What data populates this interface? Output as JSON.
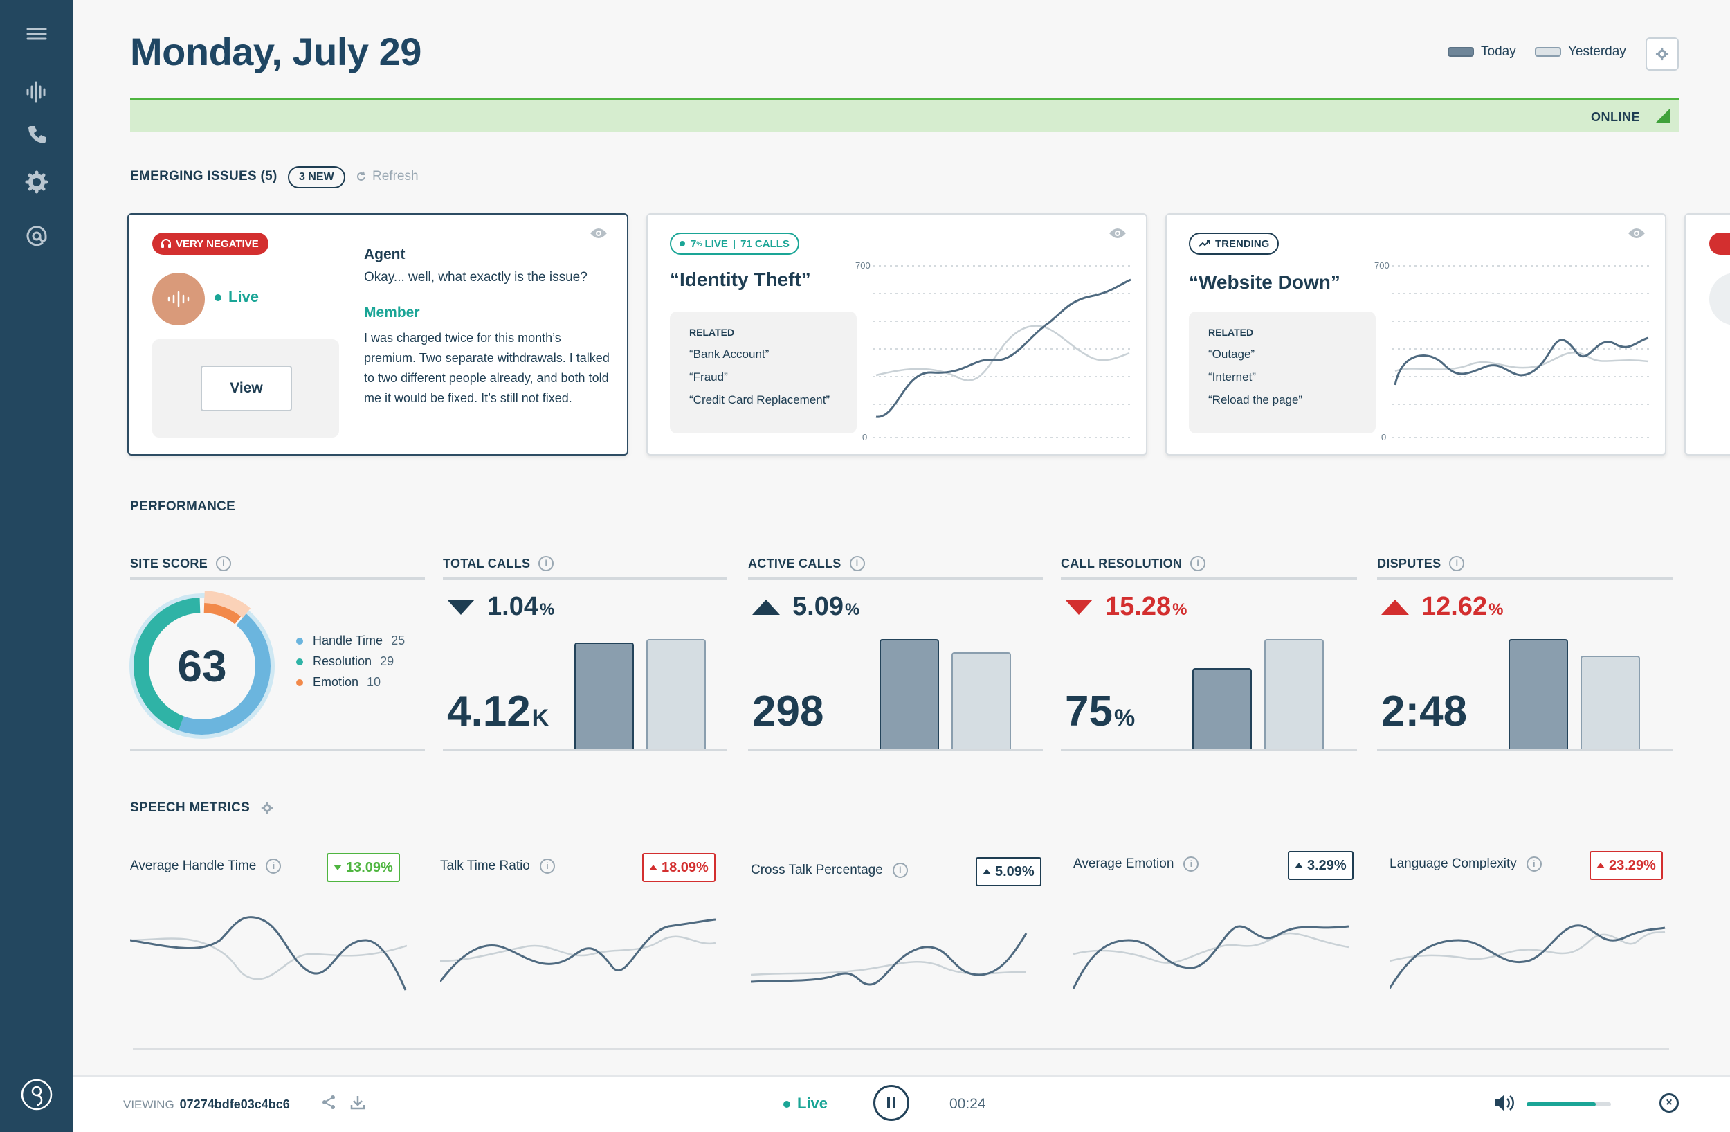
{
  "header": {
    "title": "Monday, July 29",
    "legend_today": "Today",
    "legend_yesterday": "Yesterday",
    "status": "ONLINE"
  },
  "colors": {
    "sidebar": "#23475f",
    "teal": "#1aa596",
    "negative_red": "#d32f2f",
    "positive_green": "#4fb540",
    "navy": "#1e3d52"
  },
  "sidebar": {
    "icons": [
      "menu-icon",
      "waveform-icon",
      "phone-icon",
      "gear-icon",
      "at-sign-icon",
      "logo-icon"
    ]
  },
  "emerging": {
    "label": "EMERGING ISSUES (5)",
    "new_badge": "3 NEW",
    "refresh": "Refresh",
    "card1": {
      "badge": "VERY NEGATIVE",
      "status": "Live",
      "view_button": "View",
      "agent_label": "Agent",
      "agent_text": "Okay... well, what exactly is the issue?",
      "member_label": "Member",
      "member_text": "I was charged twice for this month’s premium. Two separate withdrawals. I talked to two different people already, and both told me it would be fixed. It’s still not fixed."
    },
    "card2": {
      "pill_prefix": "7",
      "pill_sup": "%",
      "pill_live": "LIVE",
      "pill_calls": "71 CALLS",
      "title": "“Identity Theft”",
      "related_label": "RELATED",
      "related": [
        "“Bank Account”",
        "“Fraud”",
        "“Credit Card Replacement”"
      ],
      "y_max": "700",
      "y_min": "0"
    },
    "card3": {
      "pill": "TRENDING",
      "title": "“Website Down”",
      "related_label": "RELATED",
      "related": [
        "“Outage”",
        "“Internet”",
        "“Reload the page”"
      ],
      "y_max": "700",
      "y_min": "0"
    }
  },
  "performance": {
    "label": "PERFORMANCE",
    "site_score": {
      "label": "SITE SCORE",
      "value": "63",
      "legend": [
        {
          "name": "Handle Time",
          "value": "25",
          "color": "#6bb5de"
        },
        {
          "name": "Resolution",
          "value": "29",
          "color": "#2fb3a6"
        },
        {
          "name": "Emotion",
          "value": "10",
          "color": "#f2894a"
        }
      ]
    },
    "metrics": [
      {
        "label": "TOTAL CALLS",
        "delta": "1.04",
        "delta_unit": "%",
        "direction": "down",
        "color": "#1e3d52",
        "value": "4.12",
        "suffix": "K",
        "today": 0.66,
        "yesterday": 0.68
      },
      {
        "label": "ACTIVE CALLS",
        "delta": "5.09",
        "delta_unit": "%",
        "direction": "up",
        "color": "#1e3d52",
        "value": "298",
        "suffix": "",
        "today": 0.68,
        "yesterday": 0.6
      },
      {
        "label": "CALL RESOLUTION",
        "delta": "15.28",
        "delta_unit": "%",
        "direction": "down",
        "color": "#d32f2f",
        "value": "75",
        "suffix": "%",
        "today": 0.5,
        "yesterday": 0.68
      },
      {
        "label": "DISPUTES",
        "delta": "12.62",
        "delta_unit": "%",
        "direction": "up",
        "color": "#d32f2f",
        "value": "2:48",
        "suffix": "",
        "today": 0.68,
        "yesterday": 0.58
      }
    ]
  },
  "speech": {
    "label": "SPEECH METRICS",
    "items": [
      {
        "title": "Average Handle Time",
        "badge": "13.09%",
        "direction": "down",
        "color": "#4fb540"
      },
      {
        "title": "Talk Time Ratio",
        "badge": "18.09%",
        "direction": "up",
        "color": "#d32f2f"
      },
      {
        "title": "Cross Talk Percentage",
        "badge": "5.09%",
        "direction": "up",
        "color": "#1e3d52"
      },
      {
        "title": "Average Emotion",
        "badge": "3.29%",
        "direction": "up",
        "color": "#1e3d52"
      },
      {
        "title": "Language Complexity",
        "badge": "23.29%",
        "direction": "up",
        "color": "#d32f2f"
      }
    ]
  },
  "footer": {
    "viewing_label": "VIEWING",
    "viewing_id": "07274bdfe03c4bc6",
    "live": "Live",
    "time": "00:24",
    "volume": 0.82
  }
}
